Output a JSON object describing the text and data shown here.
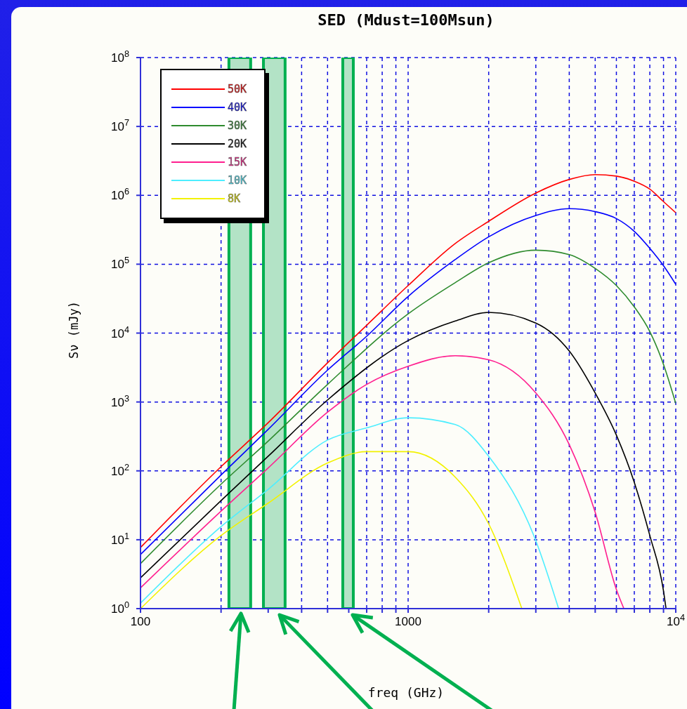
{
  "chart_data": {
    "type": "line",
    "title": "SED (Mdust=100Msun)",
    "xlabel": "freq (GHz)",
    "ylabel": "Sν (mJy)",
    "log": "xy",
    "grid": true,
    "legend": "top left",
    "marker": "none",
    "line_style": "solid",
    "xlim": [
      100,
      10000
    ],
    "xticks": [
      100,
      {
        "value": 200,
        "label": null
      },
      {
        "value": 300,
        "label": null
      },
      {
        "value": 400,
        "label": null
      },
      {
        "value": 500,
        "label": null
      },
      {
        "value": 600,
        "label": null
      },
      {
        "value": 700,
        "label": null
      },
      {
        "value": 800,
        "label": null
      },
      {
        "value": 900,
        "label": null
      },
      1000,
      {
        "value": 2000,
        "label": null
      },
      {
        "value": 3000,
        "label": null
      },
      {
        "value": 4000,
        "label": null
      },
      {
        "value": 5000,
        "label": null
      },
      {
        "value": 6000,
        "label": null
      },
      {
        "value": 7000,
        "label": null
      },
      {
        "value": 8000,
        "label": null
      },
      {
        "value": 9000,
        "label": null
      },
      {
        "value": 10000,
        "label": "10$^{4}$"
      }
    ],
    "ylim": [
      1,
      100000000
    ],
    "yticks": [
      {
        "value": 1,
        "label": "10$^{0}$"
      },
      {
        "value": 10,
        "label": "10$^{1}$"
      },
      {
        "value": 100,
        "label": "10$^{2}$"
      },
      {
        "value": 1000,
        "label": "10$^{3}$"
      },
      {
        "value": 10000,
        "label": "10$^{4}$"
      },
      {
        "value": 100000,
        "label": "10$^{5}$"
      },
      {
        "value": 1000000,
        "label": "10$^{6}$"
      },
      {
        "value": 10000000,
        "label": "10$^{7}$"
      },
      {
        "value": 100000000,
        "label": "10$^{8}$"
      }
    ],
    "bands": [
      {
        "axis": "x",
        "from": 214,
        "to": 258,
        "color": "#b3e3c6"
      },
      {
        "axis": "x",
        "from": 288,
        "to": 347,
        "color": "#b3e3c6"
      },
      {
        "axis": "x",
        "from": 570,
        "to": 624,
        "color": "#b3e3c6"
      }
    ],
    "series": [
      {
        "name": "50K",
        "color": "#ff0000",
        "x": [
          100,
          200,
          300,
          500,
          700,
          1000,
          1500,
          2000,
          3000,
          4000,
          5000,
          6000,
          7000,
          8000,
          9000,
          10000
        ],
        "values": [
          7.7,
          115,
          500,
          3700,
          13000,
          49000,
          200000,
          420000,
          1080000,
          1700000,
          2000000,
          1900000,
          1600000,
          1230000,
          810000,
          560000
        ]
      },
      {
        "name": "40K",
        "color": "#0000ff",
        "x": [
          100,
          200,
          300,
          500,
          700,
          1000,
          1500,
          2000,
          3000,
          4000,
          5000,
          6000,
          7000,
          8000,
          9000,
          10000
        ],
        "values": [
          6.1,
          87,
          400,
          2900,
          9000,
          34000,
          117000,
          250000,
          510000,
          640000,
          580000,
          460000,
          300000,
          170000,
          95000,
          51000
        ]
      },
      {
        "name": "30K",
        "color": "#2e8b2e",
        "x": [
          100,
          200,
          300,
          500,
          1000,
          1500,
          2000,
          3000,
          4000,
          5000,
          6000,
          7000,
          8000,
          9000,
          10000
        ],
        "values": [
          4.5,
          64,
          270,
          1800,
          19000,
          54000,
          105000,
          160000,
          138000,
          87000,
          49000,
          24000,
          10500,
          3500,
          950
        ]
      },
      {
        "name": "20K",
        "color": "#000000",
        "x": [
          100,
          200,
          300,
          500,
          1000,
          1500,
          2000,
          3000,
          4000,
          5000,
          6000,
          7000,
          8000,
          9000,
          9200
        ],
        "values": [
          2.8,
          37,
          163,
          1070,
          7800,
          15000,
          20000,
          14000,
          5500,
          1350,
          330,
          68,
          11.5,
          1.8,
          1
        ]
      },
      {
        "name": "15K",
        "color": "#ff1f8f",
        "x": [
          100,
          200,
          300,
          500,
          700,
          1000,
          1500,
          2000,
          3000,
          4000,
          5000,
          6000,
          6400
        ],
        "values": [
          2,
          26,
          110,
          710,
          1800,
          3300,
          4700,
          4100,
          1350,
          240,
          25,
          1.9,
          1
        ]
      },
      {
        "name": "10K",
        "color": "#4deeff",
        "x": [
          100,
          200,
          300,
          500,
          700,
          1000,
          1500,
          2000,
          3000,
          3650
        ],
        "values": [
          1.2,
          15.5,
          54,
          280,
          420,
          590,
          470,
          163,
          9.7,
          1
        ]
      },
      {
        "name": "8K",
        "color": "#f2f200",
        "x": [
          100,
          200,
          300,
          500,
          700,
          1000,
          1500,
          2000,
          2660
        ],
        "values": [
          1,
          11.5,
          34,
          130,
          190,
          190,
          81,
          17,
          1
        ]
      }
    ]
  }
}
